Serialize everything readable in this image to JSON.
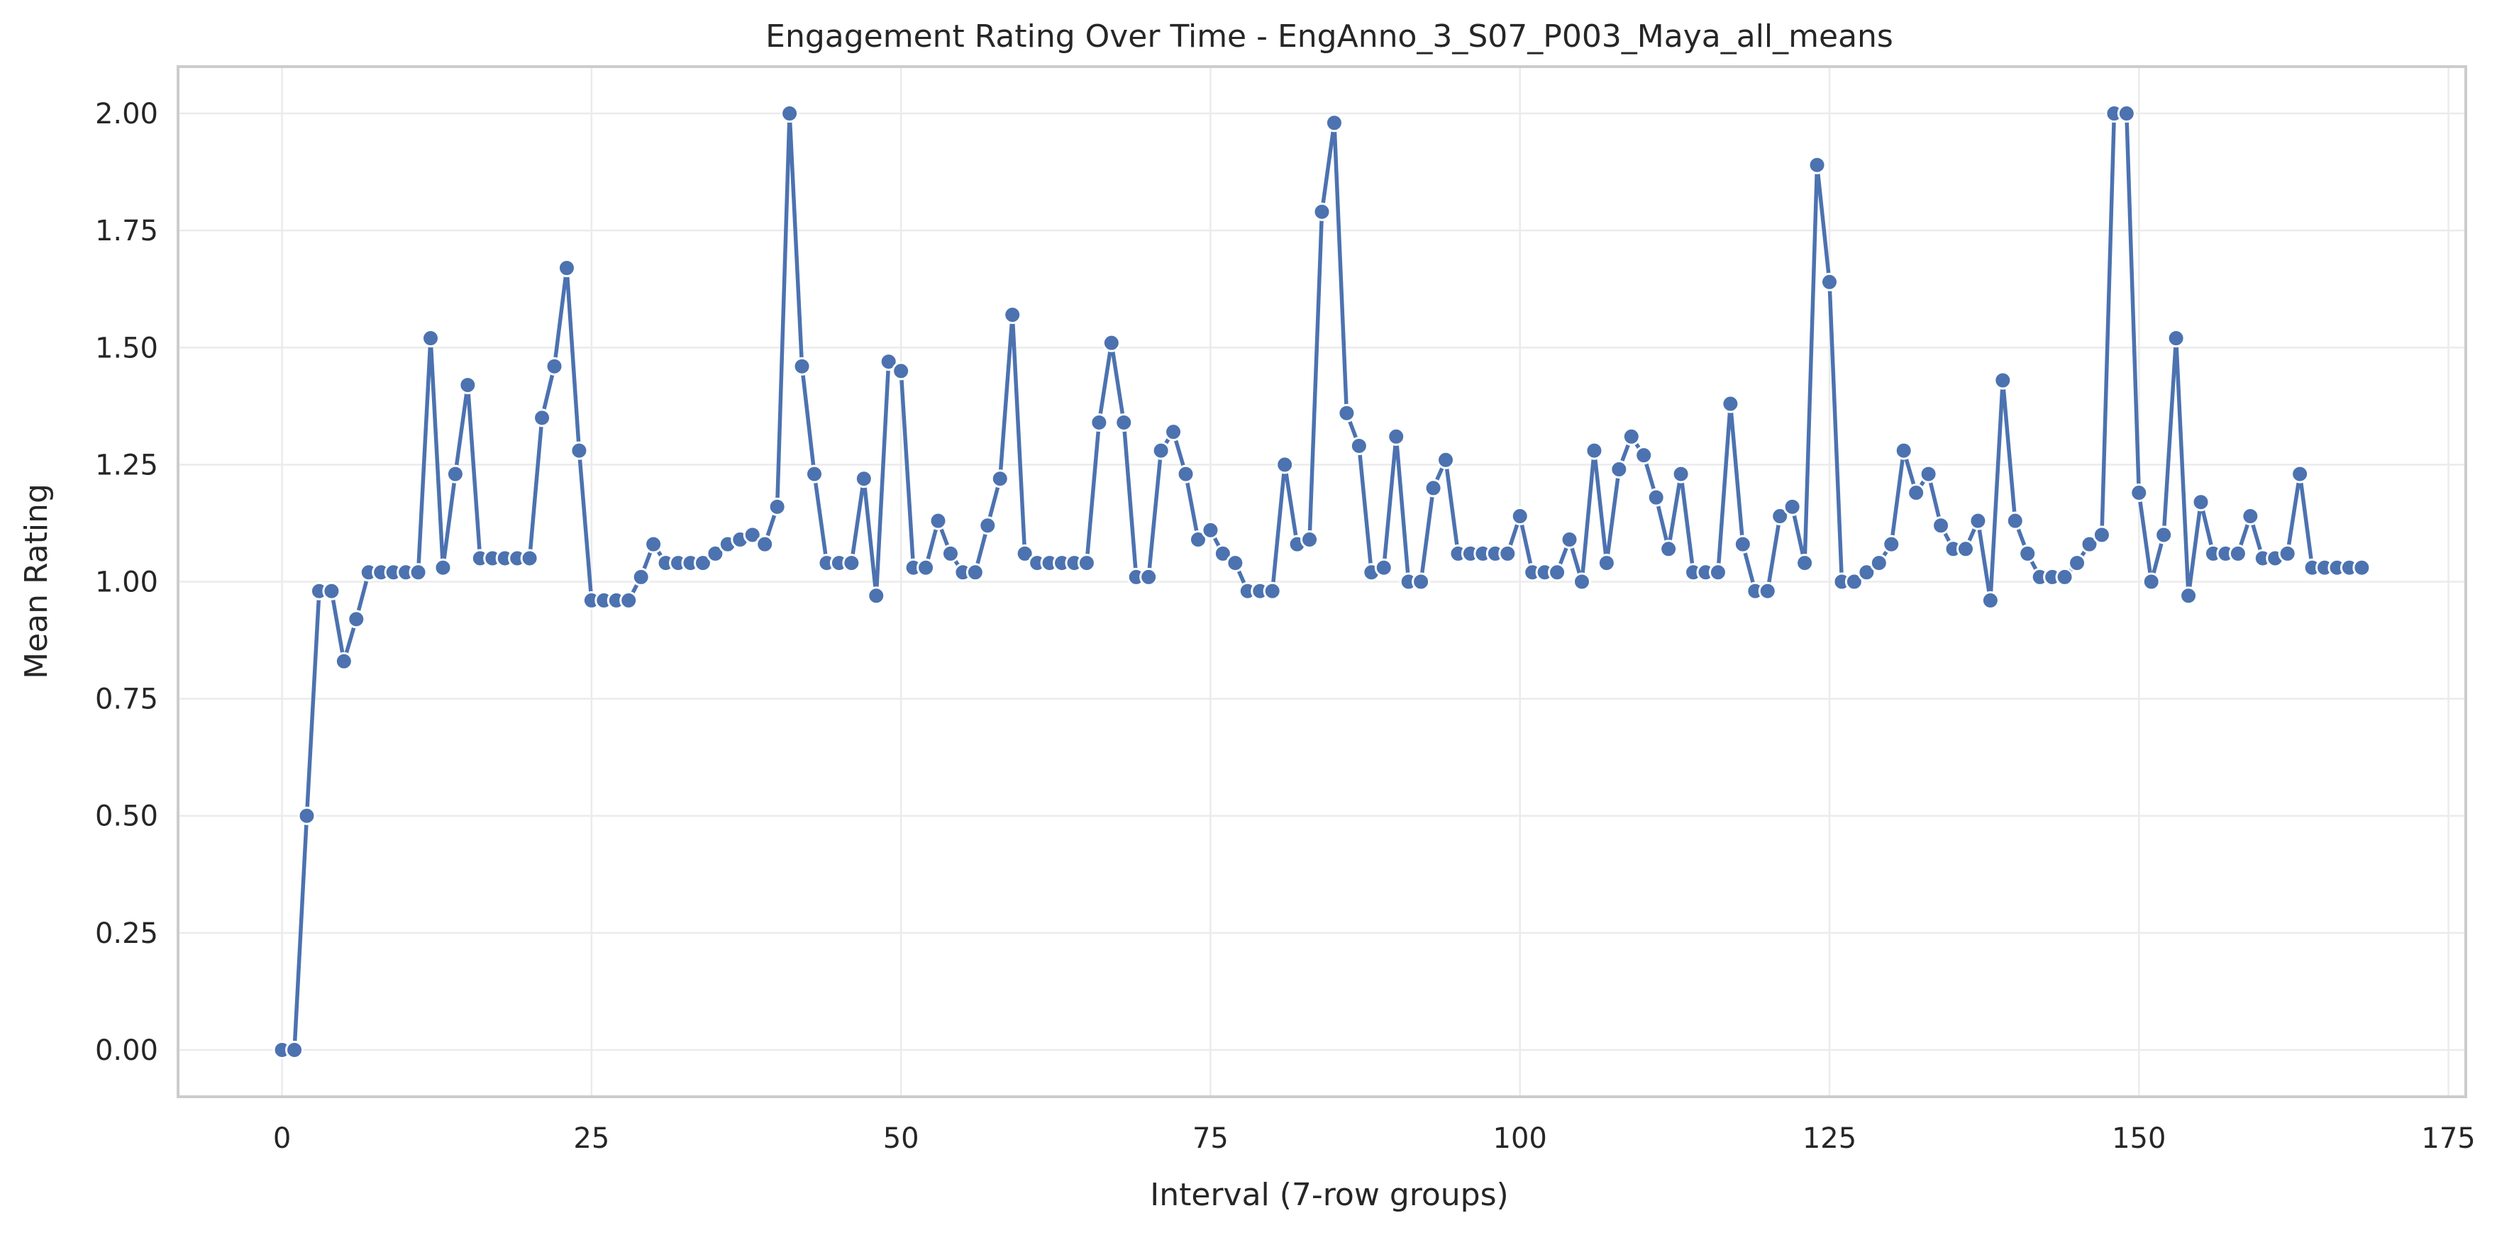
{
  "chart_data": {
    "type": "line",
    "title": "Engagement Rating Over Time -  EngAnno_3_S07_P003_Maya_all_means",
    "xlabel": "Interval (7-row groups)",
    "ylabel": "Mean Rating",
    "xlim": [
      -8.4,
      176.4
    ],
    "ylim": [
      -0.1,
      2.1
    ],
    "xticks": [
      0,
      25,
      50,
      75,
      100,
      125,
      150,
      175
    ],
    "yticks": [
      0.0,
      0.25,
      0.5,
      0.75,
      1.0,
      1.25,
      1.5,
      1.75,
      2.0
    ],
    "ytick_labels": [
      "0.00",
      "0.25",
      "0.50",
      "0.75",
      "1.00",
      "1.25",
      "1.50",
      "1.75",
      "2.00"
    ],
    "grid": true,
    "color": "#4c72b0",
    "x": [
      0,
      1,
      2,
      3,
      4,
      5,
      6,
      7,
      8,
      9,
      10,
      11,
      12,
      13,
      14,
      15,
      16,
      17,
      18,
      19,
      20,
      21,
      22,
      23,
      24,
      25,
      26,
      27,
      28,
      29,
      30,
      31,
      32,
      33,
      34,
      35,
      36,
      37,
      38,
      39,
      40,
      41,
      42,
      43,
      44,
      45,
      46,
      47,
      48,
      49,
      50,
      51,
      52,
      53,
      54,
      55,
      56,
      57,
      58,
      59,
      60,
      61,
      62,
      63,
      64,
      65,
      66,
      67,
      68,
      69,
      70,
      71,
      72,
      73,
      74,
      75,
      76,
      77,
      78,
      79,
      80,
      81,
      82,
      83,
      84,
      85,
      86,
      87,
      88,
      89,
      90,
      91,
      92,
      93,
      94,
      95,
      96,
      97,
      98,
      99,
      100,
      101,
      102,
      103,
      104,
      105,
      106,
      107,
      108,
      109,
      110,
      111,
      112,
      113,
      114,
      115,
      116,
      117,
      118,
      119,
      120,
      121,
      122,
      123,
      124,
      125,
      126,
      127,
      128,
      129,
      130,
      131,
      132,
      133,
      134,
      135,
      136,
      137,
      138,
      139,
      140,
      141,
      142,
      143,
      144,
      145,
      146,
      147,
      148,
      149,
      150,
      151,
      152,
      153,
      154,
      155,
      156,
      157,
      158,
      159,
      160,
      161,
      162,
      163,
      164,
      165,
      166,
      167,
      168
    ],
    "values": [
      0.0,
      0.0,
      0.5,
      0.98,
      0.98,
      0.83,
      0.92,
      1.02,
      1.02,
      1.02,
      1.02,
      1.02,
      1.52,
      1.03,
      1.23,
      1.42,
      1.05,
      1.05,
      1.05,
      1.05,
      1.05,
      1.35,
      1.46,
      1.67,
      1.28,
      0.96,
      0.96,
      0.96,
      0.96,
      1.01,
      1.08,
      1.04,
      1.04,
      1.04,
      1.04,
      1.06,
      1.08,
      1.09,
      1.1,
      1.08,
      1.16,
      2.0,
      1.46,
      1.23,
      1.04,
      1.04,
      1.04,
      1.22,
      0.97,
      1.47,
      1.45,
      1.03,
      1.03,
      1.13,
      1.06,
      1.02,
      1.02,
      1.12,
      1.22,
      1.57,
      1.06,
      1.04,
      1.04,
      1.04,
      1.04,
      1.04,
      1.34,
      1.51,
      1.34,
      1.01,
      1.01,
      1.28,
      1.32,
      1.23,
      1.09,
      1.11,
      1.06,
      1.04,
      0.98,
      0.98,
      0.98,
      1.25,
      1.08,
      1.09,
      1.79,
      1.98,
      1.36,
      1.29,
      1.02,
      1.03,
      1.31,
      1.0,
      1.0,
      1.2,
      1.26,
      1.06,
      1.06,
      1.06,
      1.06,
      1.06,
      1.14,
      1.02,
      1.02,
      1.02,
      1.09,
      1.0,
      1.28,
      1.04,
      1.24,
      1.31,
      1.27,
      1.18,
      1.07,
      1.23,
      1.02,
      1.02,
      1.02,
      1.38,
      1.08,
      0.98,
      0.98,
      1.14,
      1.16,
      1.04,
      1.89,
      1.64,
      1.0,
      1.0,
      1.02,
      1.04,
      1.08,
      1.28,
      1.19,
      1.23,
      1.12,
      1.07,
      1.07,
      1.13,
      0.96,
      1.43,
      1.13,
      1.06,
      1.01,
      1.01,
      1.01,
      1.04,
      1.08,
      1.1,
      2.0,
      2.0,
      1.19,
      1.0,
      1.1,
      1.52,
      0.97,
      1.17,
      1.06,
      1.06,
      1.06,
      1.14,
      1.05,
      1.05,
      1.06,
      1.23,
      1.03,
      1.03,
      1.03,
      1.03,
      1.03
    ]
  }
}
